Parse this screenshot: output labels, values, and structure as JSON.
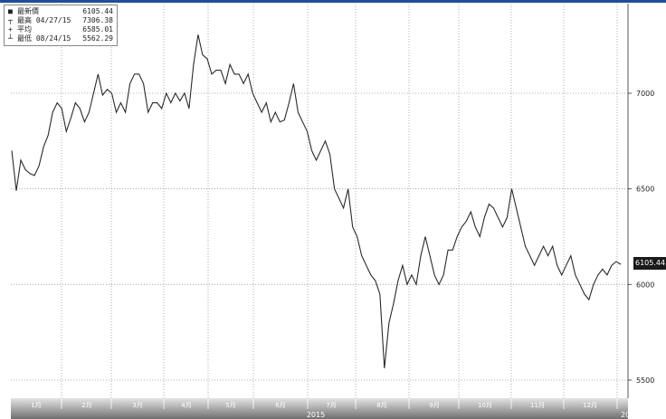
{
  "legend": {
    "last_label": "最新價",
    "last_value": "6105.44",
    "high_label": "最高",
    "high_date": "04/27/15",
    "high_value": "7306.38",
    "avg_label": "平均",
    "avg_value": "6585.01",
    "low_label": "最低",
    "low_date": "08/24/15",
    "low_value": "5562.29"
  },
  "last_price_tag": "6105.44",
  "year_label": "2015",
  "next_year_label": "20'",
  "chart_data": {
    "type": "line",
    "title": "",
    "xlabel": "2015",
    "ylabel": "",
    "ylim": [
      5500,
      7420
    ],
    "yticks": [
      5500,
      6000,
      6500,
      7000
    ],
    "month_labels": [
      "1月",
      "2月",
      "3月",
      "4月",
      "5月",
      "6月",
      "7月",
      "8月",
      "9月",
      "10月",
      "11月",
      "12月"
    ],
    "series": [
      {
        "values": [
          6700,
          6490,
          6650,
          6600,
          6580,
          6570,
          6620,
          6720,
          6780,
          6900,
          6950,
          6920,
          6800,
          6870,
          6950,
          6920,
          6850,
          6900,
          7000,
          7100,
          6990,
          7020,
          7000,
          6900,
          6950,
          6900,
          7050,
          7100,
          7100,
          7050,
          6900,
          6950,
          6950,
          6920,
          7000,
          6950,
          7000,
          6960,
          7000,
          6920,
          7150,
          7306,
          7200,
          7180,
          7100,
          7120,
          7120,
          7050,
          7150,
          7100,
          7100,
          7050,
          7100,
          7000,
          6950,
          6900,
          6950,
          6850,
          6900,
          6850,
          6860,
          6950,
          7050,
          6900,
          6850,
          6800,
          6700,
          6650,
          6700,
          6750,
          6680,
          6500,
          6450,
          6400,
          6500,
          6300,
          6250,
          6150,
          6100,
          6050,
          6020,
          5950,
          5562,
          5800,
          5900,
          6020,
          6100,
          6000,
          6050,
          6000,
          6150,
          6250,
          6150,
          6050,
          6000,
          6050,
          6180,
          6180,
          6250,
          6300,
          6330,
          6380,
          6300,
          6250,
          6350,
          6420,
          6400,
          6350,
          6300,
          6350,
          6500,
          6400,
          6300,
          6200,
          6150,
          6100,
          6150,
          6200,
          6150,
          6200,
          6100,
          6050,
          6100,
          6150,
          6050,
          6000,
          5950,
          5920,
          6000,
          6050,
          6080,
          6050,
          6100,
          6120,
          6105.44
        ]
      }
    ]
  },
  "colors": {
    "line": "#2a2a2a",
    "grid": "#9a9a9a",
    "axis_bar_top": "#dcdcdc",
    "axis_bar_bottom": "#7c7c7c",
    "top_border": "#1f4e99"
  }
}
